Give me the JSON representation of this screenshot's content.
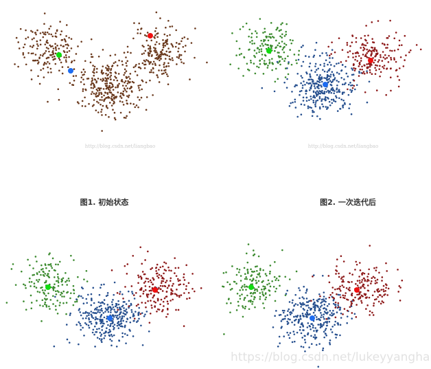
{
  "figure": {
    "captions": [
      "图1. 初始状态",
      "图2. 一次迭代后"
    ],
    "watermarks": [
      "http://blog.csdn.net/liangbao",
      "http://blog.csdn.net/liangbao",
      "https://blog.csdn.net/lukeyyanghang"
    ]
  }
}
